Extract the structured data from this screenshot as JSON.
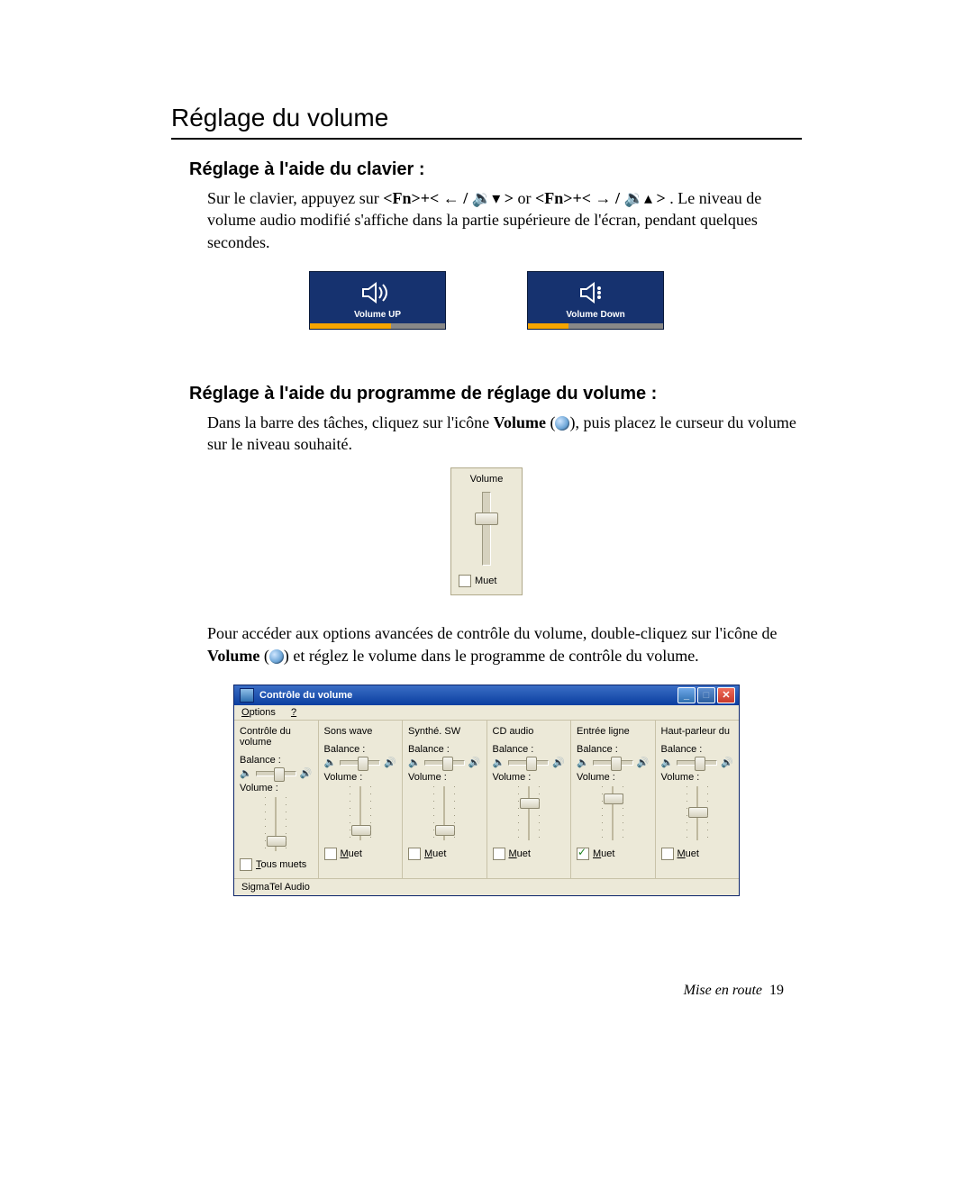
{
  "doc": {
    "title": "Réglage du volume",
    "section1": {
      "heading": "Réglage à l'aide du clavier :",
      "para_a": "Sur le clavier, appuyez sur ",
      "key1_a": "<Fn>+< ",
      "key1_b": " / ",
      "key1_c": " >",
      "or": " or ",
      "key2_a": "<Fn>+< ",
      "key2_b": " / ",
      "key2_c": " >",
      "para_b": ". Le niveau de volume audio modifié s'affiche dans la partie supérieure de l'écran, pendant quelques secondes.",
      "osd_up": "Volume UP",
      "osd_down": "Volume Down"
    },
    "section2": {
      "heading": "Réglage à l'aide du programme de réglage du volume :",
      "p1_a": "Dans la barre des tâches, cliquez sur l'icône ",
      "p1_b": "Volume",
      "p1_c": " (",
      "p1_d": "), puis placez le curseur du volume sur le niveau souhaité.",
      "popup_title": "Volume",
      "popup_mute": "Muet",
      "p2_a": "Pour accéder aux options avancées de contrôle du volume, double-cliquez sur l'icône de ",
      "p2_b": "Volume",
      "p2_c": " (",
      "p2_d": ") et réglez le volume dans le programme de contrôle du volume."
    },
    "window": {
      "title": "Contrôle du volume",
      "menu_options": "Options",
      "menu_help": "?",
      "balance_label": "Balance :",
      "volume_label": "Volume :",
      "mute_all": "Tous muets",
      "mute": "Muet",
      "status": "SigmaTel Audio",
      "channels": [
        {
          "name": "Contrôle du volume",
          "bal": 0.5,
          "vol": 0.15,
          "mute": false,
          "mute_label": "Tous muets"
        },
        {
          "name": "Sons wave",
          "bal": 0.5,
          "vol": 0.15,
          "mute": false,
          "mute_label": "Muet"
        },
        {
          "name": "Synthé. SW",
          "bal": 0.5,
          "vol": 0.15,
          "mute": false,
          "mute_label": "Muet"
        },
        {
          "name": "CD audio",
          "bal": 0.5,
          "vol": 0.75,
          "mute": false,
          "mute_label": "Muet"
        },
        {
          "name": "Entrée ligne",
          "bal": 0.5,
          "vol": 0.85,
          "mute": true,
          "mute_label": "Muet"
        },
        {
          "name": "Haut-parleur du",
          "bal": 0.5,
          "vol": 0.55,
          "mute": false,
          "mute_label": "Muet"
        }
      ]
    },
    "footer_label": "Mise en route",
    "footer_page": "19"
  },
  "colors": {
    "osd_bg": "#16326f",
    "osd_bar_on": "#f6a500",
    "osd_bar_off": "#888888",
    "win_title_top": "#3b6ec5",
    "win_title_bottom": "#0a3ea0",
    "win_bg": "#ece9d8",
    "border": "#0a246a",
    "close_top": "#ef6d5a",
    "close_bottom": "#c8392b"
  }
}
